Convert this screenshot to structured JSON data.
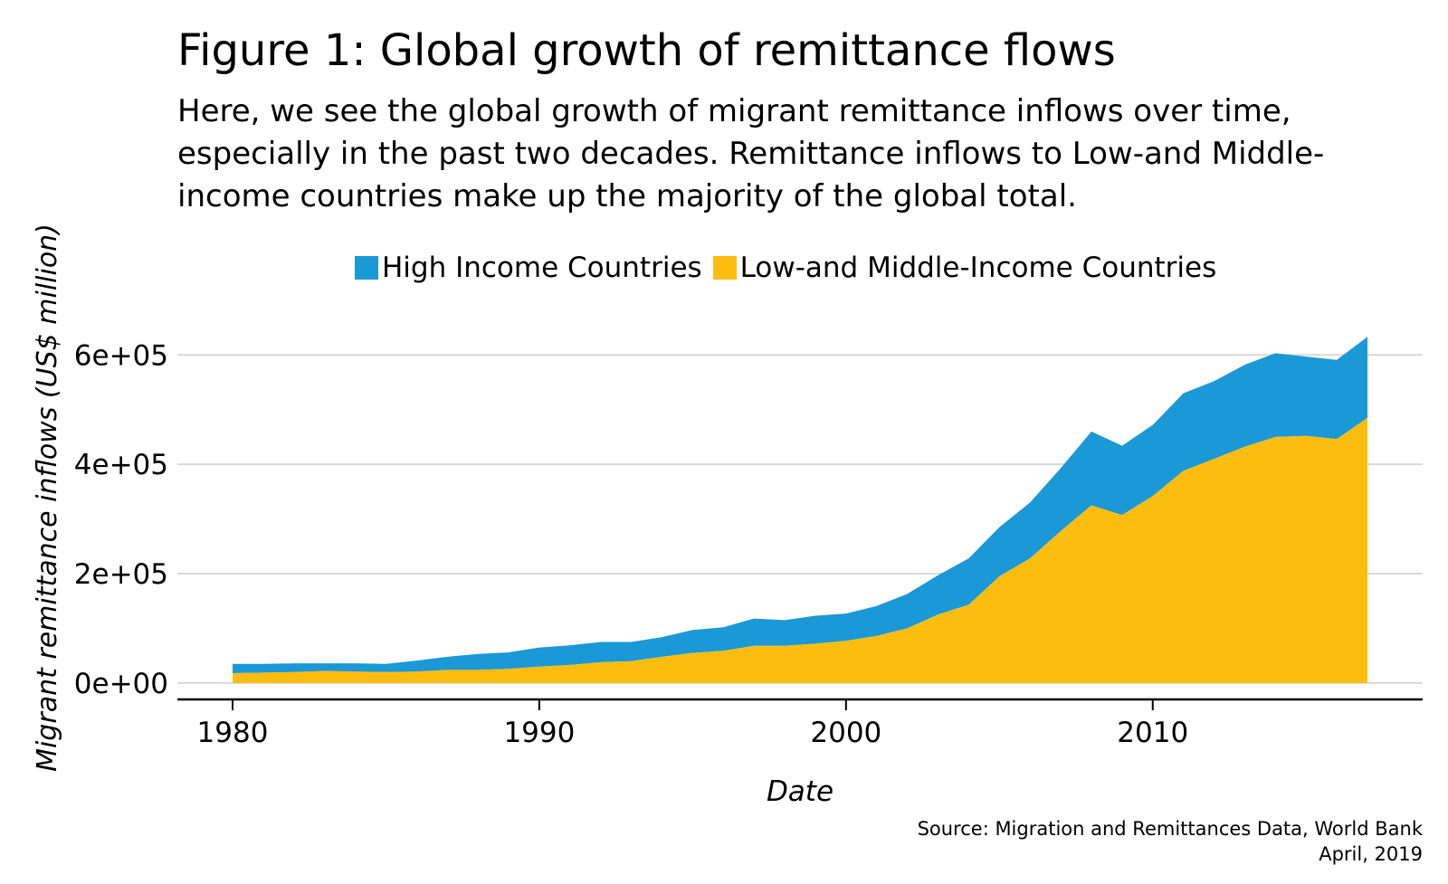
{
  "title": "Figure 1: Global growth of remittance flows",
  "subtitle": "Here, we see the global growth of migrant remittance inflows over time,\nespecially in the past two decades. Remittance inflows to Low-and Middle-\nincome countries make up the majority of the global total.",
  "source_line1": "Source: Migration and Remittances Data, World Bank",
  "source_line2": "April, 2019",
  "chart_data": {
    "type": "area",
    "stacked": true,
    "xlabel": "Date",
    "ylabel": "Migrant remittance inflows (US$ million)",
    "xlim": [
      1978.2,
      2018.8
    ],
    "ylim": [
      -30000,
      660000
    ],
    "x_ticks": [
      1980,
      1990,
      2000,
      2010
    ],
    "y_ticks": [
      0,
      200000,
      400000,
      600000
    ],
    "y_tick_labels": [
      "0e+00",
      "2e+05",
      "4e+05",
      "6e+05"
    ],
    "grid": "horizontal",
    "legend_position": "top",
    "colors": {
      "high": "#1b98d6",
      "low": "#fcbd11"
    },
    "x": [
      1980,
      1981,
      1982,
      1983,
      1984,
      1985,
      1986,
      1987,
      1988,
      1989,
      1990,
      1991,
      1992,
      1993,
      1994,
      1995,
      1996,
      1997,
      1998,
      1999,
      2000,
      2001,
      2002,
      2003,
      2004,
      2005,
      2006,
      2007,
      2008,
      2009,
      2010,
      2011,
      2012,
      2013,
      2014,
      2015,
      2016,
      2017
    ],
    "series": [
      {
        "name": "Low-and Middle-Income Countries",
        "color_key": "low",
        "values": [
          18000,
          19000,
          20000,
          22000,
          21000,
          20000,
          21000,
          24000,
          24000,
          26000,
          30000,
          33000,
          38000,
          40000,
          48000,
          55000,
          59000,
          68000,
          68000,
          72000,
          77000,
          86000,
          100000,
          125000,
          143000,
          195000,
          228000,
          278000,
          325000,
          307000,
          342000,
          388000,
          410000,
          432000,
          450000,
          452000,
          446000,
          485000
        ]
      },
      {
        "name": "High Income Countries",
        "color_key": "high",
        "values": [
          17000,
          16000,
          16000,
          14000,
          15000,
          15000,
          20000,
          24000,
          29000,
          30000,
          35000,
          36000,
          37000,
          35000,
          36000,
          42000,
          43000,
          50000,
          47000,
          51000,
          50000,
          55000,
          63000,
          72000,
          85000,
          90000,
          102000,
          115000,
          135000,
          127000,
          130000,
          142000,
          142000,
          150000,
          153000,
          145000,
          145000,
          148000
        ]
      }
    ]
  }
}
